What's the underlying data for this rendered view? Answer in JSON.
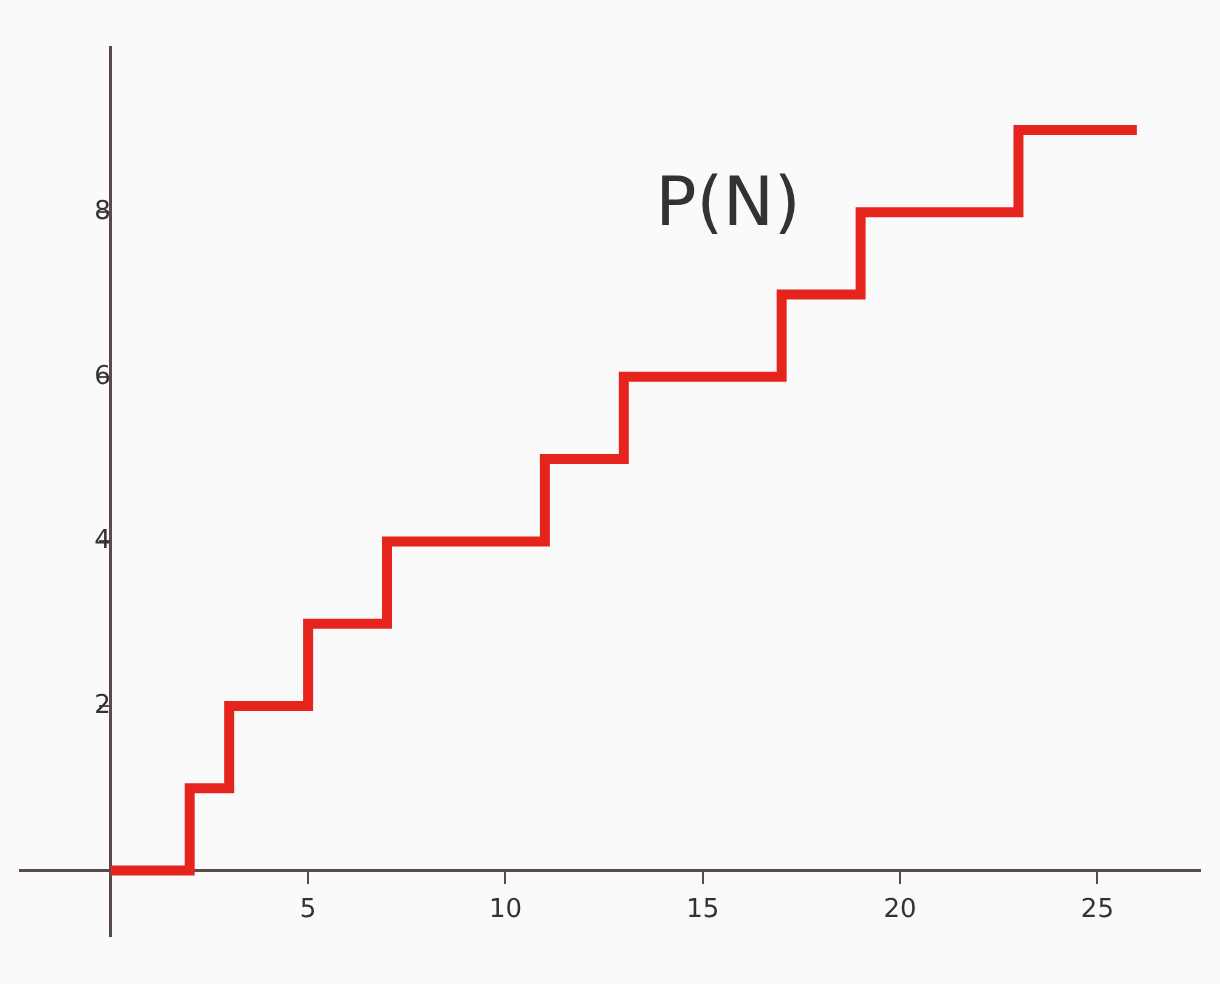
{
  "chart_data": {
    "type": "step",
    "x": [
      0,
      2,
      3,
      5,
      7,
      11,
      13,
      17,
      19,
      23,
      26
    ],
    "series": [
      {
        "name": "P(N)",
        "color": "#e5251d",
        "values": [
          0,
          1,
          2,
          3,
          4,
          5,
          6,
          7,
          8,
          9,
          9
        ]
      }
    ],
    "xlim": [
      -2.3,
      27.6
    ],
    "ylim": [
      -0.8,
      10
    ],
    "xticks": [
      5,
      10,
      15,
      20,
      25
    ],
    "yticks": [
      2,
      4,
      6,
      8
    ],
    "grid": false,
    "legend": false,
    "marker": "none",
    "line_style": "solid"
  }
}
